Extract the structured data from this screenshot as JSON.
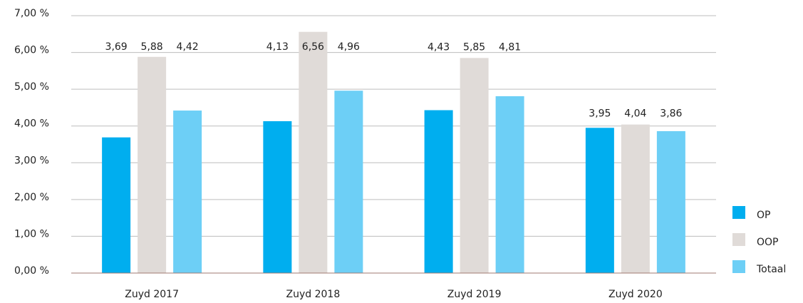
{
  "chart_data": {
    "type": "bar",
    "categories": [
      "Zuyd 2017",
      "Zuyd 2018",
      "Zuyd 2019",
      "Zuyd 2020"
    ],
    "series": [
      {
        "name": "OP",
        "color": "#00aeef",
        "values": [
          3.69,
          4.13,
          4.43,
          3.95
        ],
        "value_labels": [
          "3,69",
          "4,13",
          "4,43",
          "3,95"
        ]
      },
      {
        "name": "OOP",
        "color": "#e0dbd8",
        "values": [
          5.88,
          6.56,
          5.85,
          4.04
        ],
        "value_labels": [
          "5,88",
          "6,56",
          "5,85",
          "4,04"
        ]
      },
      {
        "name": "Totaal",
        "color": "#6dcff6",
        "values": [
          4.42,
          4.96,
          4.81,
          3.86
        ],
        "value_labels": [
          "4,42",
          "4,96",
          "4,81",
          "3,86"
        ]
      }
    ],
    "ylim": [
      0,
      7
    ],
    "yticks": [
      {
        "value": 0,
        "label": "0,00 %"
      },
      {
        "value": 1,
        "label": "1,00 %"
      },
      {
        "value": 2,
        "label": "2,00 %"
      },
      {
        "value": 3,
        "label": "3,00 %"
      },
      {
        "value": 4,
        "label": "4,00 %"
      },
      {
        "value": 5,
        "label": "5,00 %"
      },
      {
        "value": 6,
        "label": "6,00 %"
      },
      {
        "value": 7,
        "label": "7,00 %"
      }
    ],
    "grid": true,
    "legend": "bottom-right"
  }
}
